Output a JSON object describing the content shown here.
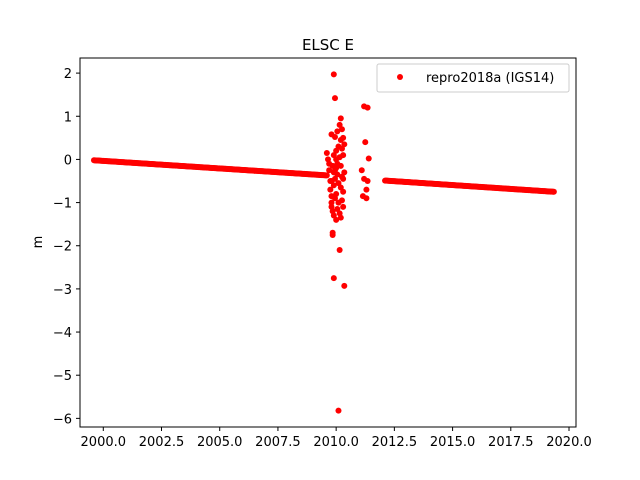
{
  "chart_data": {
    "type": "scatter",
    "title": "ELSC E",
    "xlabel": "",
    "ylabel": "m",
    "xlim": [
      1999.0,
      2020.3
    ],
    "ylim": [
      -6.2,
      2.35
    ],
    "xticks": [
      2000.0,
      2002.5,
      2005.0,
      2007.5,
      2010.0,
      2012.5,
      2015.0,
      2017.5,
      2020.0
    ],
    "xtick_labels": [
      "2000.0",
      "2002.5",
      "2005.0",
      "2007.5",
      "2010.0",
      "2012.5",
      "2015.0",
      "2017.5",
      "2020.0"
    ],
    "yticks": [
      2,
      1,
      0,
      -1,
      -2,
      -3,
      -4,
      -5,
      -6
    ],
    "ytick_labels": [
      "2",
      "1",
      "0",
      "−1",
      "−2",
      "−3",
      "−4",
      "−5",
      "−6"
    ],
    "grid": false,
    "legend_position": "top-right",
    "series": [
      {
        "name": "repro2018a (IGS14)",
        "color": "#ff0000",
        "marker": "circle",
        "trend_segments": [
          {
            "x_start": 1999.6,
            "x_end": 2009.6,
            "y_start": -0.02,
            "y_end": -0.37
          },
          {
            "x_start": 2012.1,
            "x_end": 2019.35,
            "y_start": -0.49,
            "y_end": -0.75
          }
        ],
        "cluster_points": [
          [
            2009.6,
            0.15
          ],
          [
            2009.65,
            0.0
          ],
          [
            2009.7,
            -0.1
          ],
          [
            2009.7,
            -0.25
          ],
          [
            2009.75,
            -0.5
          ],
          [
            2009.75,
            -0.7
          ],
          [
            2009.8,
            0.58
          ],
          [
            2009.8,
            -0.85
          ],
          [
            2009.8,
            -1.0
          ],
          [
            2009.8,
            -1.1
          ],
          [
            2009.85,
            -0.15
          ],
          [
            2009.85,
            -1.2
          ],
          [
            2009.85,
            -1.7
          ],
          [
            2009.85,
            -1.75
          ],
          [
            2009.9,
            0.1
          ],
          [
            2009.9,
            -0.3
          ],
          [
            2009.9,
            -0.6
          ],
          [
            2009.9,
            -1.3
          ],
          [
            2009.9,
            1.97
          ],
          [
            2009.9,
            -2.75
          ],
          [
            2009.95,
            1.42
          ],
          [
            2009.95,
            0.52
          ],
          [
            2009.95,
            -0.45
          ],
          [
            2009.95,
            -0.9
          ],
          [
            2010.0,
            0.2
          ],
          [
            2010.0,
            -0.2
          ],
          [
            2010.0,
            -0.8
          ],
          [
            2010.0,
            -1.4
          ],
          [
            2010.05,
            0.65
          ],
          [
            2010.05,
            -0.35
          ],
          [
            2010.05,
            -1.15
          ],
          [
            2010.1,
            0.3
          ],
          [
            2010.1,
            -0.55
          ],
          [
            2010.1,
            -1.0
          ],
          [
            2010.15,
            0.8
          ],
          [
            2010.15,
            0.05
          ],
          [
            2010.15,
            -1.25
          ],
          [
            2010.15,
            -2.1
          ],
          [
            2010.2,
            0.95
          ],
          [
            2010.2,
            0.45
          ],
          [
            2010.2,
            -0.65
          ],
          [
            2010.2,
            -1.35
          ],
          [
            2010.25,
            0.7
          ],
          [
            2010.25,
            0.25
          ],
          [
            2010.25,
            -0.4
          ],
          [
            2010.25,
            -0.95
          ],
          [
            2010.3,
            0.5
          ],
          [
            2010.3,
            0.1
          ],
          [
            2010.3,
            -0.75
          ],
          [
            2010.3,
            -1.1
          ],
          [
            2010.35,
            -2.93
          ],
          [
            2010.35,
            0.35
          ],
          [
            2010.35,
            -0.3
          ],
          [
            2010.1,
            -5.82
          ],
          [
            2010.0,
            0.0
          ],
          [
            2010.05,
            -0.1
          ],
          [
            2009.95,
            -0.25
          ],
          [
            2010.2,
            -0.15
          ],
          [
            2010.3,
            -0.45
          ],
          [
            2009.8,
            -0.5
          ],
          [
            2011.2,
            1.23
          ],
          [
            2011.35,
            1.2
          ],
          [
            2011.25,
            0.4
          ],
          [
            2011.4,
            0.02
          ],
          [
            2011.1,
            -0.25
          ],
          [
            2011.2,
            -0.45
          ],
          [
            2011.3,
            -0.7
          ],
          [
            2011.15,
            -0.85
          ],
          [
            2011.3,
            -0.9
          ],
          [
            2011.35,
            -0.5
          ]
        ]
      }
    ]
  }
}
